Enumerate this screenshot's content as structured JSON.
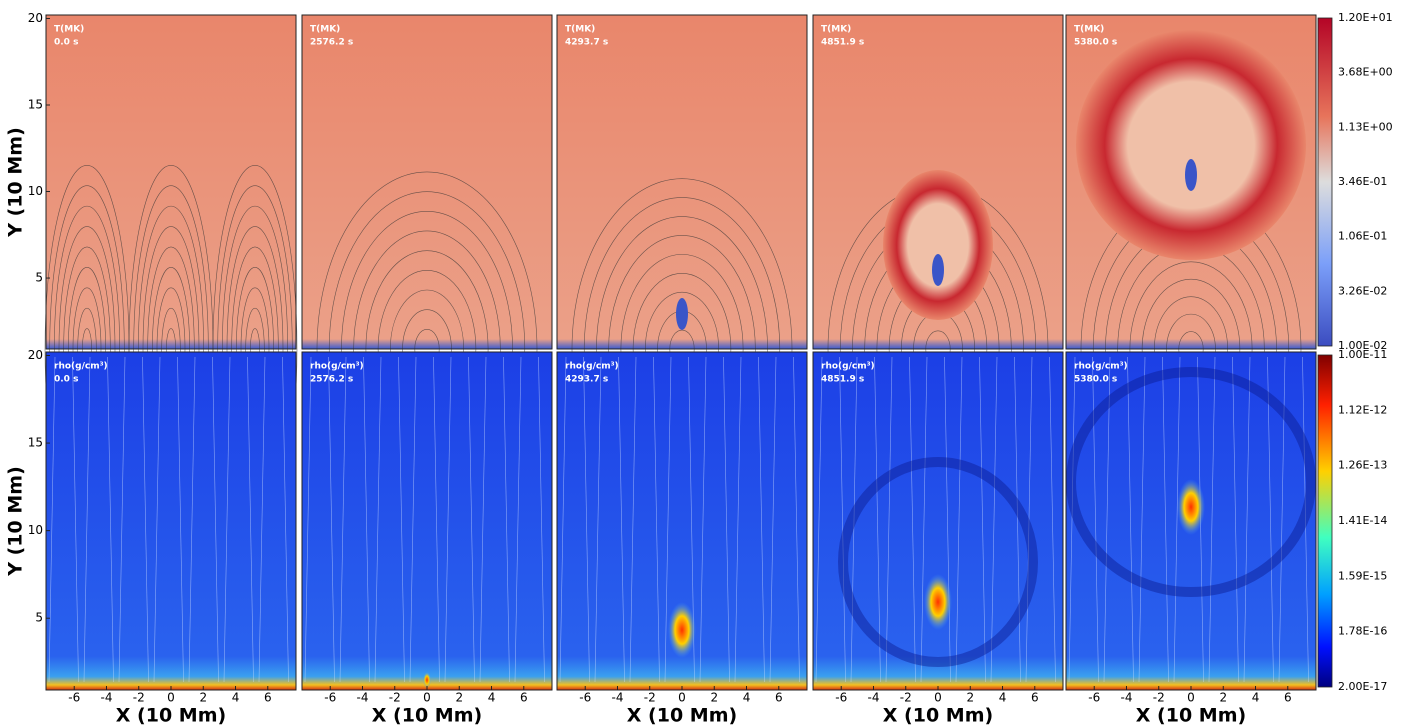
{
  "figure": {
    "x_label": "X (10 Mm)",
    "y_label": "Y (10 Mm)",
    "xlim": [
      -7.75,
      7.75
    ],
    "xticks": [
      -6,
      -4,
      -2,
      0,
      2,
      4,
      6
    ],
    "ylim": [
      0.9,
      20.2
    ],
    "yticks": [
      5,
      10,
      15,
      20
    ],
    "times": [
      "0.0 s",
      "2576.2 s",
      "4293.7 s",
      "4851.9 s",
      "5380.0 s"
    ],
    "rows": [
      {
        "quantity": "T(MK)",
        "colorbar_ticks": [
          "1.20E+01",
          "3.68E+00",
          "1.13E+00",
          "3.46E-01",
          "1.06E-01",
          "3.26E-02",
          "1.00E-02"
        ]
      },
      {
        "quantity": "rho(g/cm³)",
        "colorbar_ticks": [
          "1.00E-11",
          "1.12E-12",
          "1.26E-13",
          "1.41E-14",
          "1.59E-15",
          "1.78E-16",
          "2.00E-17"
        ]
      }
    ]
  }
}
